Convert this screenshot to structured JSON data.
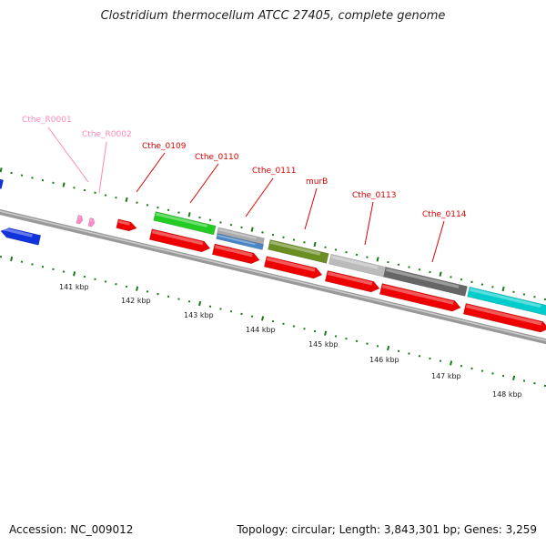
{
  "title": "Clostridium thermocellum ATCC 27405, complete genome",
  "footer": {
    "accession": "Accession: NC_009012",
    "summary": "Topology: circular; Length: 3,843,301 bp; Genes: 3,259"
  },
  "colors": {
    "label_red": "#dd0000",
    "label_pink": "#ff88bb",
    "backbone": "#888888",
    "tick_green": "#1a7a1a",
    "cds_red": "#ee0000",
    "trna_pink": "#ff88cc"
  },
  "kbp_labels": [
    "141 kbp",
    "142 kbp",
    "143 kbp",
    "144 kbp",
    "145 kbp",
    "146 kbp",
    "147 kbp",
    "148 kbp"
  ],
  "gene_labels": [
    {
      "text": "Cthe_R0001",
      "color": "pink"
    },
    {
      "text": "Cthe_R0002",
      "color": "pink"
    },
    {
      "text": "Cthe_0109",
      "color": "red"
    },
    {
      "text": "Cthe_0110",
      "color": "red"
    },
    {
      "text": "Cthe_0111",
      "color": "red"
    },
    {
      "text": "murB",
      "color": "red"
    },
    {
      "text": "Cthe_0113",
      "color": "red"
    },
    {
      "text": "Cthe_0114",
      "color": "red"
    }
  ],
  "feature_colors": {
    "outer": [
      "#22cc22",
      "#aaaaaa",
      "#6b8e23",
      "#bbbbbb",
      "#666666",
      "#00cccc"
    ],
    "cogs": [
      "blue",
      "red"
    ]
  }
}
